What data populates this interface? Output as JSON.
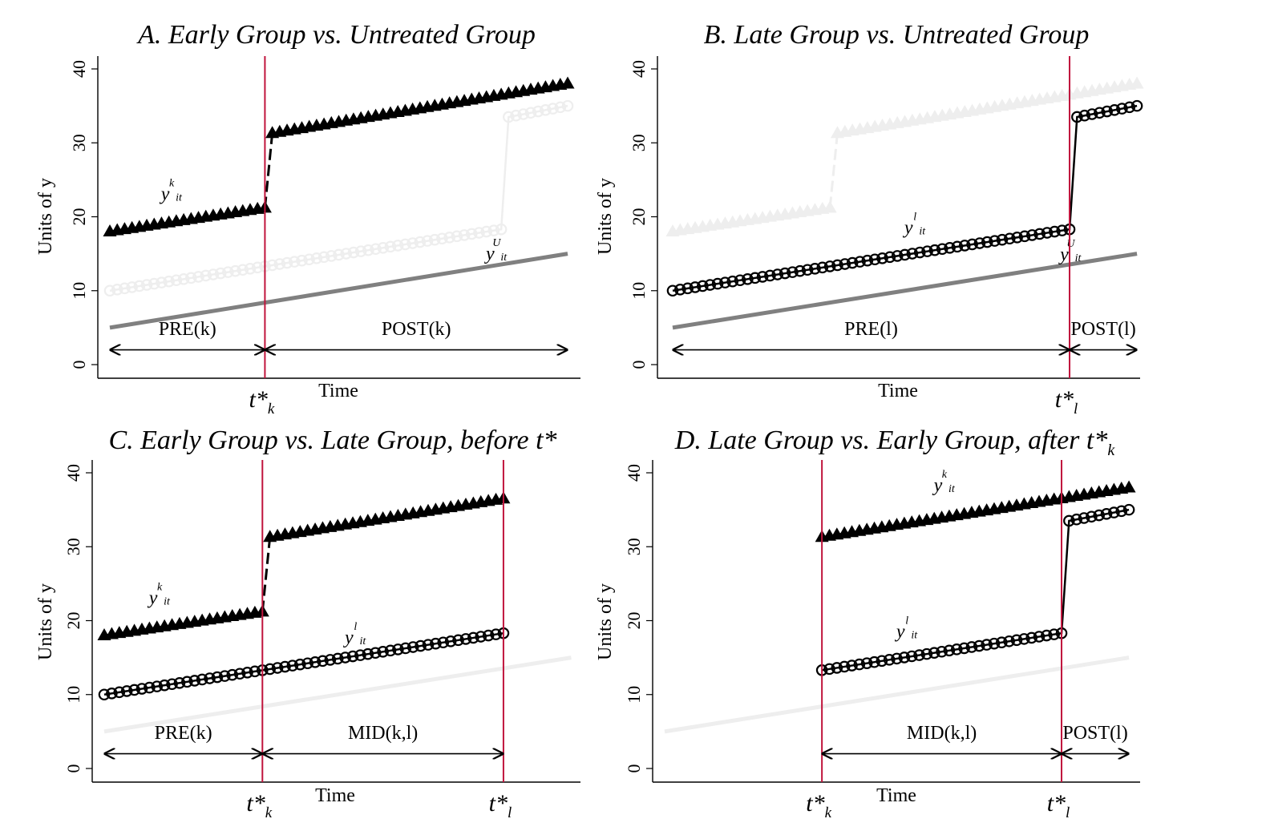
{
  "chart_data": [
    {
      "type": "line",
      "title": "A. Early Group vs. Untreated Group",
      "ylabel": "Units of y",
      "xlabel": "Time",
      "ylim": [
        0,
        40
      ],
      "yticks": [
        "0",
        "10",
        "20",
        "30",
        "40"
      ],
      "grid": false,
      "vlines": [
        {
          "x": 22,
          "label": "t*",
          "sub": "k"
        }
      ],
      "segments": [
        {
          "name": "PRE(k)",
          "from": 1,
          "to": 22
        },
        {
          "name": "POST(k)",
          "from": 22,
          "to": 63
        }
      ],
      "series": [
        {
          "name": "y_it^k",
          "label_base": "y",
          "label_sup": "k",
          "label_sub": "it",
          "label_x": 8.5,
          "label_y": 22.3,
          "color": "#000000",
          "marker": "triangle",
          "style": "dashed-jump",
          "x": [
            1,
            22,
            23,
            63
          ],
          "y": [
            18,
            21.2,
            31.3,
            38
          ]
        },
        {
          "name": "y_it^l",
          "color": "#eeeeee",
          "marker": "circle",
          "style": "solid",
          "x": [
            1,
            54,
            55,
            63
          ],
          "y": [
            10,
            18.3,
            33.5,
            35
          ]
        },
        {
          "name": "y_it^U",
          "label_base": "y",
          "label_sup": "U",
          "label_sub": "it",
          "label_x": 52.5,
          "label_y": 14.2,
          "color": "#808080",
          "marker": "none",
          "style": "thick",
          "x": [
            1,
            63
          ],
          "y": [
            5,
            15
          ]
        }
      ]
    },
    {
      "type": "line",
      "title": "B. Late Group vs. Untreated Group",
      "ylabel": "Units of y",
      "xlabel": "Time",
      "ylim": [
        0,
        40
      ],
      "yticks": [
        "0",
        "10",
        "20",
        "30",
        "40"
      ],
      "grid": false,
      "vlines": [
        {
          "x": 54,
          "label": "t*",
          "sub": "l"
        }
      ],
      "segments": [
        {
          "name": "PRE(l)",
          "from": 1,
          "to": 54
        },
        {
          "name": "POST(l)",
          "from": 54,
          "to": 63
        }
      ],
      "series": [
        {
          "name": "y_it^k",
          "color": "#eeeeee",
          "marker": "triangle",
          "style": "dashed-jump",
          "x": [
            1,
            22,
            23,
            63
          ],
          "y": [
            18,
            21.2,
            31.3,
            38
          ]
        },
        {
          "name": "y_it^l",
          "label_base": "y",
          "label_sup": "l",
          "label_sub": "it",
          "label_x": 32.5,
          "label_y": 17.7,
          "color": "#000000",
          "marker": "circle",
          "style": "solid",
          "x": [
            1,
            54,
            55,
            63
          ],
          "y": [
            10,
            18.3,
            33.5,
            35
          ]
        },
        {
          "name": "y_it^U",
          "label_base": "y",
          "label_sup": "U",
          "label_sub": "it",
          "label_x": 53.3,
          "label_y": 14.1,
          "color": "#808080",
          "marker": "none",
          "style": "thick",
          "x": [
            1,
            63
          ],
          "y": [
            5,
            15
          ]
        }
      ]
    },
    {
      "type": "line",
      "title": "C. Early Group vs. Late Group, before t*",
      "ylabel": "Units of y",
      "xlabel": "Time",
      "ylim": [
        0,
        40
      ],
      "yticks": [
        "0",
        "10",
        "20",
        "30",
        "40"
      ],
      "grid": false,
      "vlines": [
        {
          "x": 22,
          "label": "t*",
          "sub": "k"
        },
        {
          "x": 54,
          "label": "t*",
          "sub": "l"
        }
      ],
      "segments": [
        {
          "name": "PRE(k)",
          "from": 1,
          "to": 22
        },
        {
          "name": "MID(k,l)",
          "from": 22,
          "to": 54
        }
      ],
      "series": [
        {
          "name": "y_it^k",
          "label_base": "y",
          "label_sup": "k",
          "label_sub": "it",
          "label_x": 7.5,
          "label_y": 22.3,
          "color": "#000000",
          "marker": "triangle",
          "style": "dashed-jump",
          "x": [
            1,
            22,
            23,
            54
          ],
          "y": [
            18,
            21.2,
            31.3,
            36.5
          ]
        },
        {
          "name": "y_it^l",
          "label_base": "y",
          "label_sup": "l",
          "label_sub": "it",
          "label_x": 33.5,
          "label_y": 16.9,
          "color": "#000000",
          "marker": "circle",
          "style": "solid",
          "x": [
            1,
            54
          ],
          "y": [
            10,
            18.3
          ]
        },
        {
          "name": "y_it^U",
          "color": "#eeeeee",
          "marker": "none",
          "style": "thick",
          "x": [
            1,
            63
          ],
          "y": [
            5,
            15
          ]
        }
      ]
    },
    {
      "type": "line",
      "title": "D. Late Group vs. Early Group, after t*",
      "title_sub": "k",
      "ylabel": "Units of y",
      "xlabel": "Time",
      "ylim": [
        0,
        40
      ],
      "yticks": [
        "0",
        "10",
        "20",
        "30",
        "40"
      ],
      "grid": false,
      "vlines": [
        {
          "x": 22,
          "label": "t*",
          "sub": "k"
        },
        {
          "x": 54,
          "label": "t*",
          "sub": "l"
        }
      ],
      "segments": [
        {
          "name": "MID(k,l)",
          "from": 22,
          "to": 54
        },
        {
          "name": "POST(l)",
          "from": 54,
          "to": 63
        }
      ],
      "series": [
        {
          "name": "y_it^k",
          "label_base": "y",
          "label_sup": "k",
          "label_sub": "it",
          "label_x": 37.5,
          "label_y": 37.5,
          "color": "#000000",
          "marker": "triangle",
          "style": "solid",
          "x": [
            22,
            63
          ],
          "y": [
            31.3,
            38
          ]
        },
        {
          "name": "y_it^l",
          "label_base": "y",
          "label_sup": "l",
          "label_sub": "it",
          "label_x": 32.5,
          "label_y": 17.7,
          "color": "#000000",
          "marker": "circle",
          "style": "solid",
          "x": [
            22,
            54,
            55,
            63
          ],
          "y": [
            13.3,
            18.3,
            33.5,
            35
          ]
        },
        {
          "name": "y_it^U",
          "color": "#eeeeee",
          "marker": "none",
          "style": "thick",
          "x": [
            1,
            63
          ],
          "y": [
            5,
            15
          ]
        }
      ]
    }
  ],
  "colors": {
    "vline": "#c0143c",
    "black": "#000000",
    "gray": "#808080",
    "light": "#eeeeee"
  }
}
